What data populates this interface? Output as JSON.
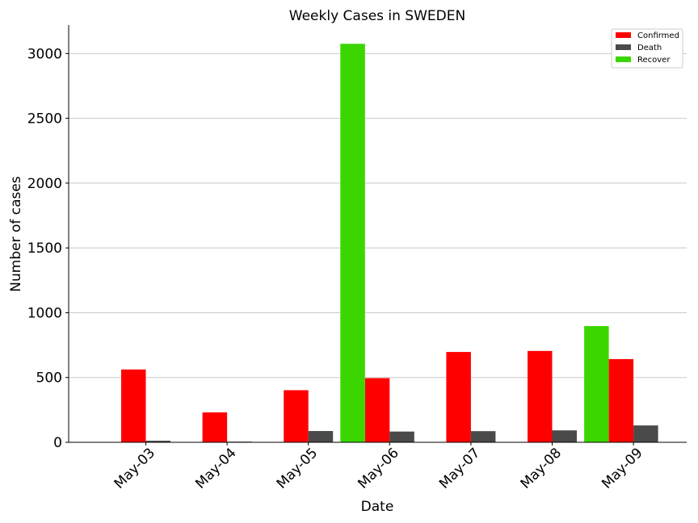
{
  "chart_data": {
    "type": "bar",
    "title": "Weekly Cases in SWEDEN",
    "xlabel": "Date",
    "ylabel": "Number of cases",
    "categories": [
      "May-03",
      "May-04",
      "May-05",
      "May-06",
      "May-07",
      "May-08",
      "May-09"
    ],
    "ylim": [
      0,
      3220
    ],
    "yticks": [
      0,
      500,
      1000,
      1500,
      2000,
      2500,
      3000
    ],
    "grid": "horizontal",
    "legend_position": "top-right",
    "series": [
      {
        "name": "Confirmed",
        "color": "#ff0000",
        "values": [
          562,
          231,
          402,
          495,
          697,
          705,
          642
        ]
      },
      {
        "name": "Death",
        "color": "#4a4a4a",
        "values": [
          12,
          5,
          87,
          83,
          86,
          92,
          130
        ]
      },
      {
        "name": "Recover",
        "color": "#3bd600",
        "values": [
          0,
          0,
          0,
          3075,
          0,
          0,
          897
        ]
      }
    ]
  }
}
